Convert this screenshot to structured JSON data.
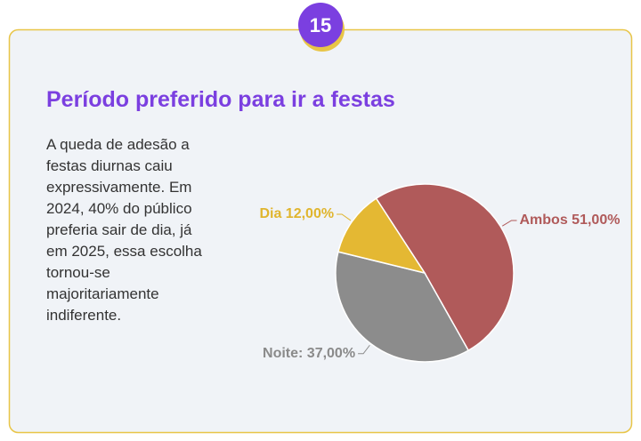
{
  "badge": "15",
  "title": "Período preferido para ir a festas",
  "body": [
    "A queda de adesão a",
    "festas diurnas caiu",
    "expressivamente. Em",
    "2024, 40% do público",
    "preferia sair de dia, já",
    "em 2025, essa escolha",
    "tornou-se",
    "majoritariamente",
    "indiferente."
  ],
  "chart_data": {
    "type": "pie",
    "values": [
      51,
      37,
      12
    ],
    "value_labels": [
      "Ambos 51,00%",
      "Noite: 37,00%",
      "Dia 12,00%"
    ],
    "colors": [
      "#b05a5a",
      "#8c8c8c",
      "#e4b833"
    ],
    "label_colors": [
      "#b05a5a",
      "#8a8a8a",
      "#e0b52e"
    ]
  }
}
